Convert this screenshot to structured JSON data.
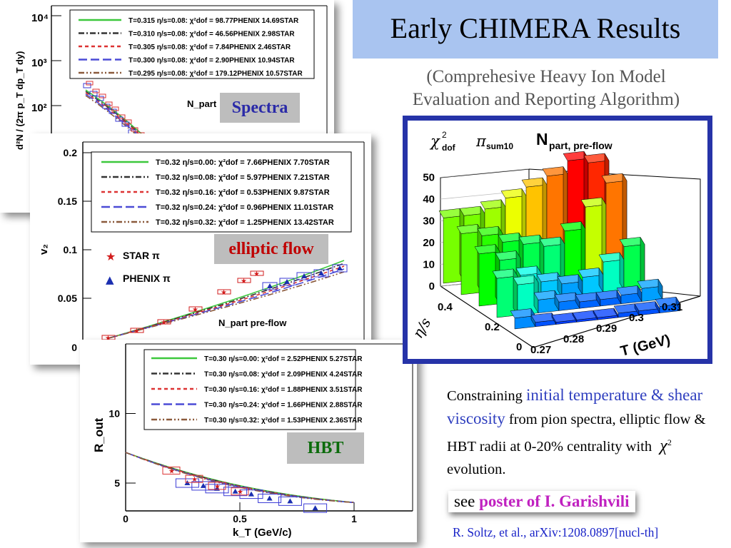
{
  "slide": {
    "title": "Early CHIMERA Results",
    "subtitle_line1": "(Comprehesive Heavy Ion Model",
    "subtitle_line2": "Evaluation and Reporting Algorithm)",
    "constrain": {
      "prefix": "Constraining ",
      "highlight": "initial temperature & shear viscosity",
      "rest1": " from pion spectra, elliptic flow & HBT radii at 0-20% centrality with ",
      "chi_symbol": "χ",
      "chi_exp": "2",
      "rest2": " evolution."
    },
    "poster": {
      "prefix": "see ",
      "link": "poster of I. Garishvili"
    },
    "citation": "R. Soltz, et al., arXiv:1208.0897[nucl-th]"
  },
  "colors": {
    "title_bg": "#a9c4f0",
    "highlight_text": "#2f3fbf",
    "poster_link": "#c021c0",
    "citation": "#1a24c8",
    "tag_bg": "#bdbdbd",
    "spectra_tag_text": "#2a2aa8",
    "elliptic_tag_text": "#c00000",
    "hbt_tag_text": "#0b6b0b",
    "lego_border": "#2633a8"
  },
  "chart_data": [
    {
      "type": "scatter",
      "name": "spectra",
      "tag": "Spectra",
      "ylabel": "d²N / (2π p_T dp_T dy)",
      "y_log": true,
      "y_ticks": [
        "10²",
        "10³",
        "10⁴"
      ],
      "annotation": "N_part",
      "legend": [
        {
          "color": "#3cc83c",
          "style": "solid",
          "label": "T=0.315 η/s=0.08: χ²dof = 98.77PHENIX 14.69STAR"
        },
        {
          "color": "#333333",
          "style": "dashdot",
          "label": "T=0.310 η/s=0.08: χ²dof = 46.56PHENIX 2.98STAR"
        },
        {
          "color": "#dd3333",
          "style": "dash",
          "label": "T=0.305 η/s=0.08: χ²dof = 7.84PHENIX 2.46STAR"
        },
        {
          "color": "#4b4bd6",
          "style": "longdash",
          "label": "T=0.300 η/s=0.08: χ²dof = 2.90PHENIX 10.94STAR"
        },
        {
          "color": "#8b5a3c",
          "style": "dashdotdot",
          "label": "T=0.295 η/s=0.08: χ²dof = 179.12PHENIX 10.57STAR"
        }
      ]
    },
    {
      "type": "scatter",
      "name": "elliptic flow",
      "tag": "elliptic flow",
      "ylabel": "v₂",
      "y_ticks": [
        "0",
        "0.05",
        "0.1",
        "0.15",
        "0.2"
      ],
      "annotation": "N_part  pre-flow",
      "markers": [
        {
          "symbol": "★",
          "color": "#d21c1c",
          "label": "STAR π"
        },
        {
          "symbol": "▲",
          "color": "#1b2fb0",
          "label": "PHENIX π"
        }
      ],
      "legend": [
        {
          "color": "#3cc83c",
          "style": "solid",
          "label": "T=0.32 η/s=0.00: χ²dof = 7.66PHENIX 7.70STAR"
        },
        {
          "color": "#333333",
          "style": "dashdot",
          "label": "T=0.32 η/s=0.08: χ²dof = 5.97PHENIX 7.21STAR"
        },
        {
          "color": "#dd3333",
          "style": "dash",
          "label": "T=0.32 η/s=0.16: χ²dof = 0.53PHENIX 9.87STAR"
        },
        {
          "color": "#4b4bd6",
          "style": "longdash",
          "label": "T=0.32 η/s=0.24: χ²dof = 0.96PHENIX 11.01STAR"
        },
        {
          "color": "#8b5a3c",
          "style": "dashdotdot",
          "label": "T=0.32 η/s=0.32: χ²dof = 1.25PHENIX 13.42STAR"
        }
      ]
    },
    {
      "type": "scatter",
      "name": "HBT",
      "tag": "HBT",
      "xlabel": "k_T (GeV/c)",
      "ylabel": "R_out",
      "x_ticks": [
        "0",
        "0.5",
        "1"
      ],
      "y_ticks": [
        "5",
        "10"
      ],
      "legend": [
        {
          "color": "#3cc83c",
          "style": "solid",
          "label": "T=0.30 η/s=0.00: χ²dof = 2.52PHENIX 5.27STAR"
        },
        {
          "color": "#333333",
          "style": "dashdot",
          "label": "T=0.30 η/s=0.08: χ²dof = 2.09PHENIX 4.24STAR"
        },
        {
          "color": "#dd3333",
          "style": "dash",
          "label": "T=0.30 η/s=0.16: χ²dof = 1.88PHENIX 3.51STAR"
        },
        {
          "color": "#4b4bd6",
          "style": "longdash",
          "label": "T=0.30 η/s=0.24: χ²dof = 1.66PHENIX 2.88STAR"
        },
        {
          "color": "#8b5a3c",
          "style": "dashdotdot",
          "label": "T=0.30 η/s=0.32: χ²dof = 1.53PHENIX 2.36STAR"
        }
      ],
      "points": {
        "phenix": [
          {
            "x": 0.27,
            "y": 5.0
          },
          {
            "x": 0.34,
            "y": 4.8
          },
          {
            "x": 0.4,
            "y": 4.6
          },
          {
            "x": 0.48,
            "y": 4.4
          },
          {
            "x": 0.55,
            "y": 4.2
          },
          {
            "x": 0.63,
            "y": 3.9
          },
          {
            "x": 0.72,
            "y": 3.7
          },
          {
            "x": 0.83,
            "y": 3.2
          }
        ],
        "star": [
          {
            "x": 0.2,
            "y": 5.9
          },
          {
            "x": 0.3,
            "y": 5.3
          },
          {
            "x": 0.4,
            "y": 4.8
          },
          {
            "x": 0.5,
            "y": 4.4
          }
        ]
      }
    },
    {
      "type": "heatmap",
      "name": "lego",
      "title": "χ²dof  π sum10   N part, pre-flow",
      "title_chi": "χ",
      "title_dof_sup": "2",
      "title_dof_sub": "dof",
      "title_pi": "π",
      "title_pi_sub": "sum10",
      "title_n": "N",
      "title_n_sub": "part, pre-flow",
      "xlabel": "T (GeV)",
      "ylabel": "η/s",
      "x_ticks": [
        "0.27",
        "0.28",
        "0.29",
        "0.3",
        "0.31"
      ],
      "y_ticks": [
        "0",
        "0.2",
        "0.4"
      ],
      "z_ticks": [
        "0",
        "10",
        "20",
        "30",
        "40",
        "50"
      ],
      "z_max": 50
    }
  ]
}
